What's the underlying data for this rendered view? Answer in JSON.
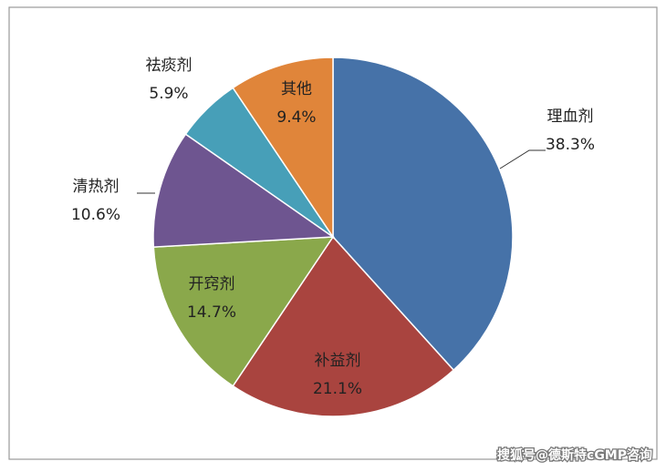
{
  "chart_data": {
    "type": "pie",
    "categories": [
      "理血剂",
      "补益剂",
      "开窍剂",
      "清热剂",
      "祛痰剂",
      "其他"
    ],
    "values": [
      38.3,
      21.1,
      14.7,
      10.6,
      5.9,
      9.4
    ],
    "value_labels": [
      "38.3%",
      "21.1%",
      "14.7%",
      "10.6%",
      "5.9%",
      "9.4%"
    ],
    "colors": [
      "#4672a8",
      "#a9443f",
      "#8aa84b",
      "#6e5590",
      "#479fb8",
      "#e0853a"
    ],
    "watermark": "搜狐号@德斯特cGMP咨询"
  }
}
